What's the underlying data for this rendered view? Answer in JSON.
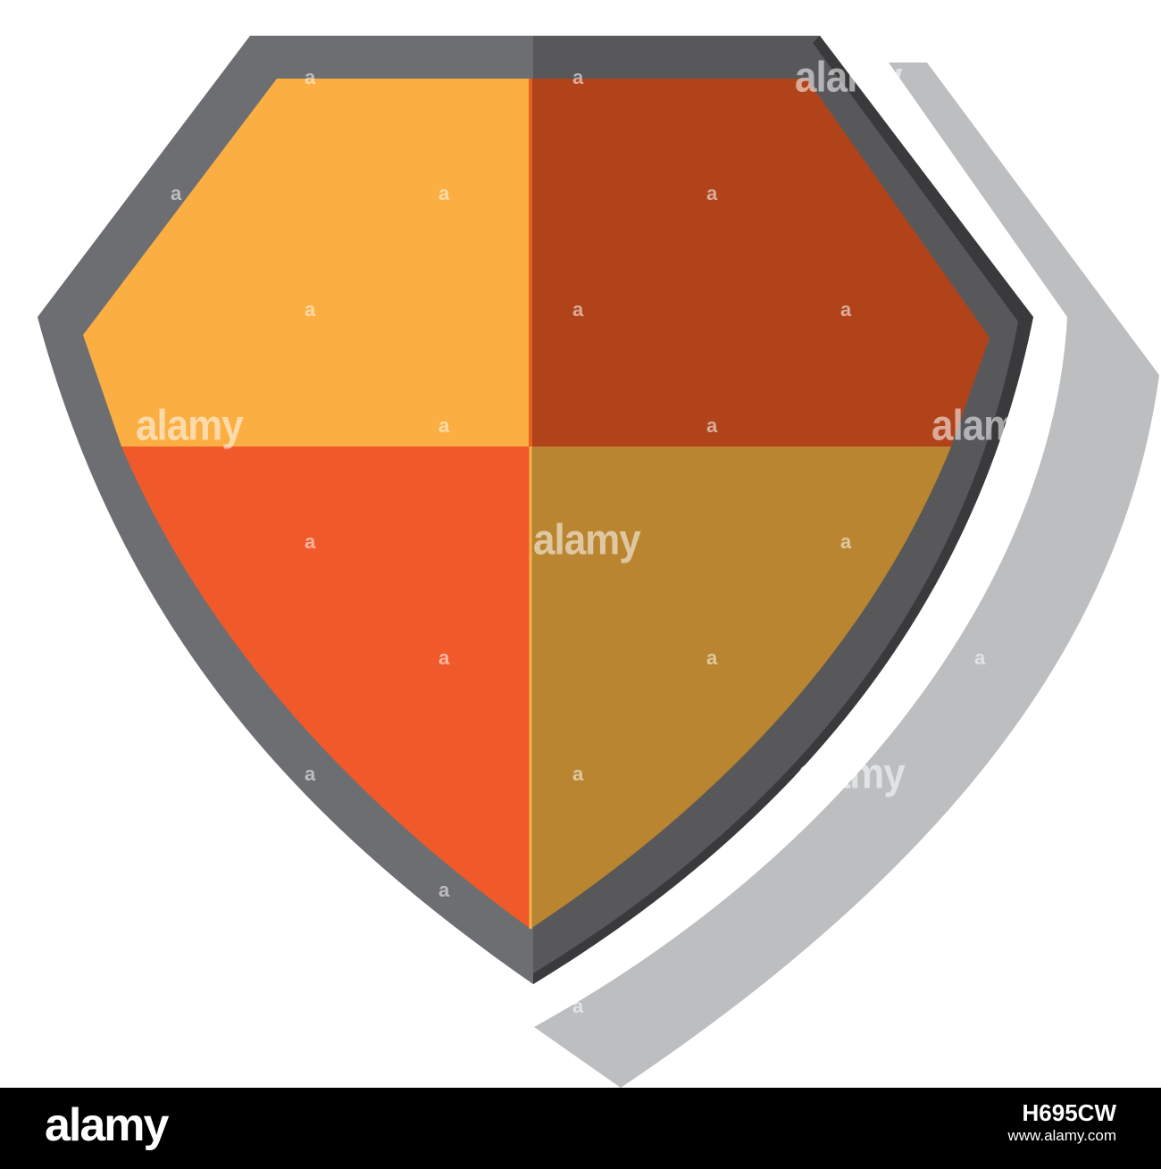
{
  "watermark": {
    "brand": "alamy",
    "letter": "a"
  },
  "footer": {
    "logo": "alamy",
    "image_id": "H695CW",
    "url": "www.alamy.com"
  },
  "colors": {
    "top_left": "#FBAE42",
    "top_right": "#B1431B",
    "bottom_left": "#F05A2A",
    "bottom_right": "#B98530",
    "frame_left": "#6D6E71",
    "frame_right": "#58585B",
    "frame_edge": "#3A3A3C",
    "shadow": "#BCBEC0"
  },
  "icons": [
    "shield-icon"
  ]
}
